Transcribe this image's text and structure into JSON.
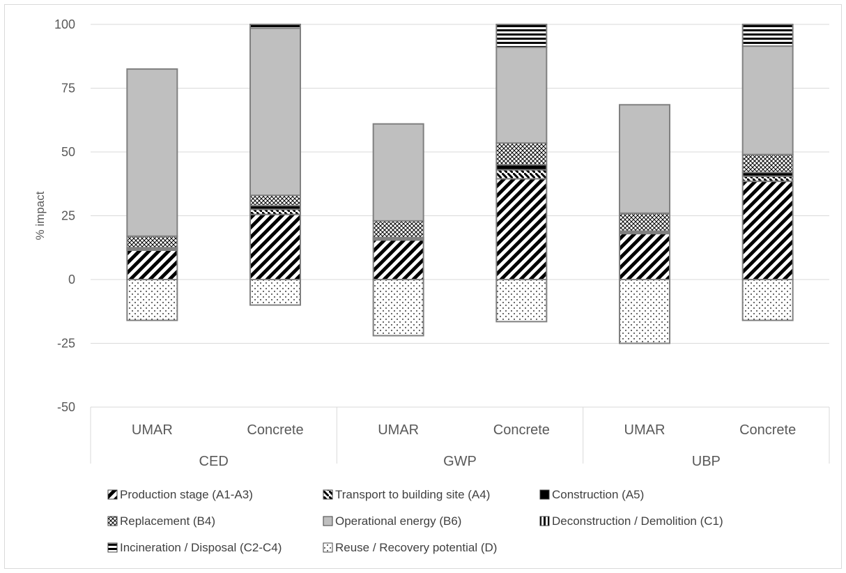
{
  "chart_data": {
    "type": "bar",
    "stacked": true,
    "ylabel": "% impact",
    "ylim": [
      -50,
      100
    ],
    "yticks": [
      100,
      75,
      50,
      25,
      0,
      -25,
      -50
    ],
    "grid": true,
    "legend_position": "bottom",
    "groups": [
      {
        "label": "CED",
        "categories": [
          "UMAR",
          "Concrete"
        ]
      },
      {
        "label": "GWP",
        "categories": [
          "UMAR",
          "Concrete"
        ]
      },
      {
        "label": "UBP",
        "categories": [
          "UMAR",
          "Concrete"
        ]
      }
    ],
    "series": [
      {
        "name": "Production stage (A1-A3)",
        "pattern": "diag-up",
        "values": [
          11.5,
          25.5,
          15.5,
          39.5,
          18.0,
          38.5
        ]
      },
      {
        "name": "Transport to building site (A4)",
        "pattern": "diag-down",
        "values": [
          0.5,
          2.0,
          0.5,
          3.5,
          0.5,
          2.0
        ]
      },
      {
        "name": "Construction (A5)",
        "pattern": "solid-black",
        "values": [
          0.5,
          1.5,
          0.5,
          2.0,
          0.5,
          1.5
        ]
      },
      {
        "name": "Replacement (B4)",
        "pattern": "crosshatch",
        "values": [
          4.5,
          4.0,
          6.5,
          8.5,
          7.0,
          7.0
        ]
      },
      {
        "name": "Operational energy (B6)",
        "pattern": "gray",
        "values": [
          65.5,
          65.5,
          38.0,
          37.5,
          42.5,
          42.5
        ]
      },
      {
        "name": "Deconstruction / Demolition (C1)",
        "pattern": "vstripes",
        "values": [
          0.0,
          0.0,
          0.0,
          0.0,
          0.0,
          0.0
        ]
      },
      {
        "name": "Incineration / Disposal (C2-C4)",
        "pattern": "hstripes",
        "values": [
          0.0,
          1.5,
          0.0,
          9.0,
          0.0,
          8.5
        ]
      },
      {
        "name": "Reuse / Recovery potential (D)",
        "pattern": "dots",
        "values": [
          -16.0,
          -10.0,
          -22.0,
          -16.5,
          -25.0,
          -16.0
        ]
      }
    ],
    "colors": {
      "gray": "#bfbfbf",
      "grid": "#d9d9d9",
      "text": "#595959",
      "ink": "#000000"
    }
  }
}
